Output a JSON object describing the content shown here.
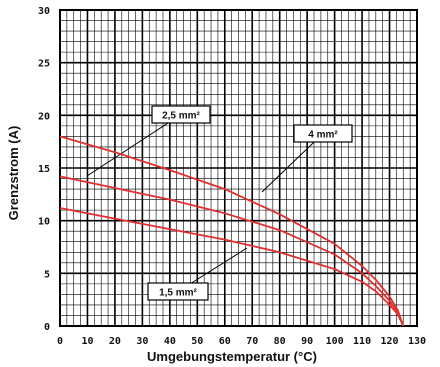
{
  "chart_data": {
    "type": "line",
    "xlabel": "Umgebungstemperatur (°C)",
    "ylabel": "Grenzstrom (A)",
    "xlim": [
      0,
      130
    ],
    "ylim": [
      0,
      30
    ],
    "x_ticks": [
      "0",
      "10",
      "20",
      "30",
      "40",
      "50",
      "60",
      "70",
      "80",
      "90",
      "100",
      "110",
      "120",
      "130"
    ],
    "y_ticks": [
      "0",
      "5",
      "10",
      "15",
      "20",
      "25",
      "30"
    ],
    "grid": true,
    "series": [
      {
        "name": "4 mm²",
        "color": "#e03030",
        "x": [
          0,
          20,
          40,
          60,
          80,
          100,
          110,
          115,
          120,
          123,
          125
        ],
        "y": [
          18,
          16.5,
          14.8,
          13.0,
          10.6,
          7.8,
          5.7,
          4.4,
          2.8,
          1.5,
          0
        ]
      },
      {
        "name": "2,5 mm²",
        "color": "#e03030",
        "x": [
          0,
          20,
          40,
          60,
          80,
          100,
          110,
          115,
          120,
          123,
          125
        ],
        "y": [
          14.2,
          13.1,
          12.0,
          10.7,
          9.1,
          6.8,
          5.0,
          3.8,
          2.4,
          1.3,
          0
        ]
      },
      {
        "name": "1,5 mm²",
        "color": "#e03030",
        "x": [
          0,
          20,
          40,
          60,
          80,
          100,
          110,
          115,
          120,
          123,
          125
        ],
        "y": [
          11.2,
          10.2,
          9.2,
          8.2,
          7.0,
          5.4,
          4.2,
          3.3,
          2.0,
          1.1,
          0
        ]
      }
    ]
  }
}
